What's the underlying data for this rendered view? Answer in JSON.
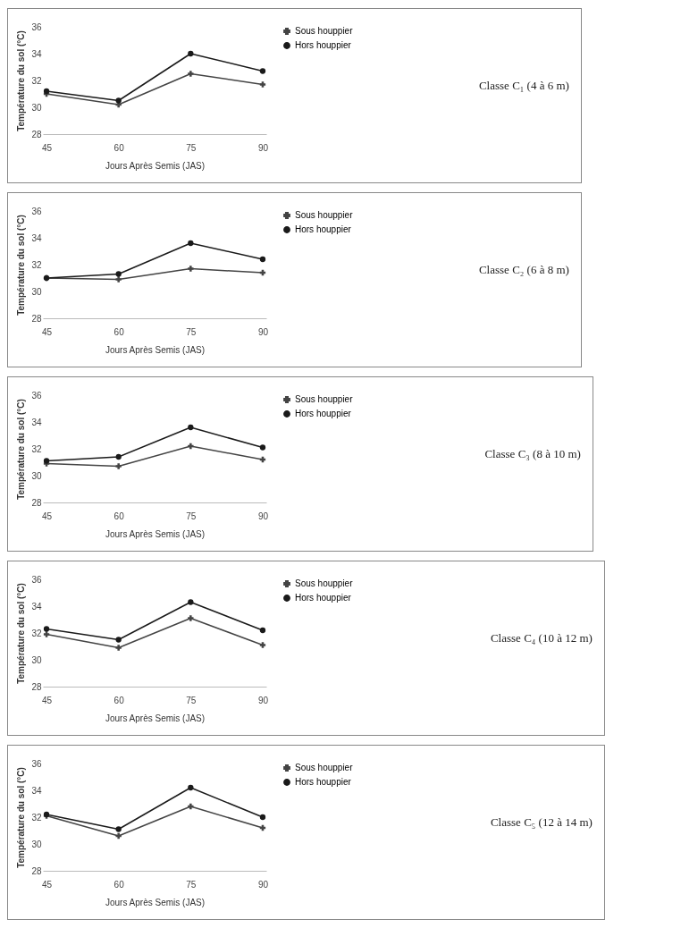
{
  "chart_data": [
    {
      "type": "line",
      "annotations": [
        "Classe C₁ (4 à 6 m)"
      ],
      "xlabel": "Jours Après Semis (JAS)",
      "ylabel": "Température du sol (°C)",
      "categories": [
        "45",
        "60",
        "75",
        "90"
      ],
      "ylim": [
        28,
        36
      ],
      "yticks": [
        28,
        30,
        32,
        34,
        36
      ],
      "legend": "right",
      "series": [
        {
          "name": "Sous houppier",
          "color": "#444444",
          "marker": "cross",
          "values": [
            31.0,
            30.2,
            32.5,
            31.7
          ]
        },
        {
          "name": "Hors houppier",
          "color": "#1a1a1a",
          "marker": "circle",
          "values": [
            31.2,
            30.5,
            34.0,
            32.7
          ]
        }
      ]
    },
    {
      "type": "line",
      "annotations": [
        "Classe C₂ (6 à 8 m)"
      ],
      "xlabel": "Jours Après Semis (JAS)",
      "ylabel": "Température du sol (°C)",
      "categories": [
        "45",
        "60",
        "75",
        "90"
      ],
      "ylim": [
        28,
        36
      ],
      "yticks": [
        28,
        30,
        32,
        34,
        36
      ],
      "legend": "right",
      "series": [
        {
          "name": "Sous houppier",
          "color": "#444444",
          "marker": "cross",
          "values": [
            31.0,
            30.9,
            31.7,
            31.4
          ]
        },
        {
          "name": "Hors houppier",
          "color": "#1a1a1a",
          "marker": "circle",
          "values": [
            31.0,
            31.3,
            33.6,
            32.4
          ]
        }
      ]
    },
    {
      "type": "line",
      "annotations": [
        "Classe C₃ (8 à 10 m)"
      ],
      "xlabel": "Jours Après Semis (JAS)",
      "ylabel": "Température du sol (°C)",
      "categories": [
        "45",
        "60",
        "75",
        "90"
      ],
      "ylim": [
        28,
        36
      ],
      "yticks": [
        28,
        30,
        32,
        34,
        36
      ],
      "legend": "right",
      "series": [
        {
          "name": "Sous houppier",
          "color": "#444444",
          "marker": "cross",
          "values": [
            30.9,
            30.7,
            32.2,
            31.2
          ]
        },
        {
          "name": "Hors houppier",
          "color": "#1a1a1a",
          "marker": "circle",
          "values": [
            31.1,
            31.4,
            33.6,
            32.1
          ]
        }
      ]
    },
    {
      "type": "line",
      "annotations": [
        "Classe C₄ (10 à 12 m)"
      ],
      "xlabel": "Jours Après Semis (JAS)",
      "ylabel": "Température du sol (°C)",
      "categories": [
        "45",
        "60",
        "75",
        "90"
      ],
      "ylim": [
        28,
        36
      ],
      "yticks": [
        28,
        30,
        32,
        34,
        36
      ],
      "legend": "right",
      "series": [
        {
          "name": "Sous houppier",
          "color": "#444444",
          "marker": "cross",
          "values": [
            31.9,
            30.9,
            33.1,
            31.1
          ]
        },
        {
          "name": "Hors houppier",
          "color": "#1a1a1a",
          "marker": "circle",
          "values": [
            32.3,
            31.5,
            34.3,
            32.2
          ]
        }
      ]
    },
    {
      "type": "line",
      "annotations": [
        "Classe C₅ (12 à 14 m)"
      ],
      "xlabel": "Jours Après Semis (JAS)",
      "ylabel": "Température du sol (°C)",
      "categories": [
        "45",
        "60",
        "75",
        "90"
      ],
      "ylim": [
        28,
        36
      ],
      "yticks": [
        28,
        30,
        32,
        34,
        36
      ],
      "legend": "right",
      "series": [
        {
          "name": "Sous houppier",
          "color": "#444444",
          "marker": "cross",
          "values": [
            32.1,
            30.6,
            32.8,
            31.2
          ]
        },
        {
          "name": "Hors houppier",
          "color": "#1a1a1a",
          "marker": "circle",
          "values": [
            32.2,
            31.1,
            34.2,
            32.0
          ]
        }
      ]
    }
  ]
}
